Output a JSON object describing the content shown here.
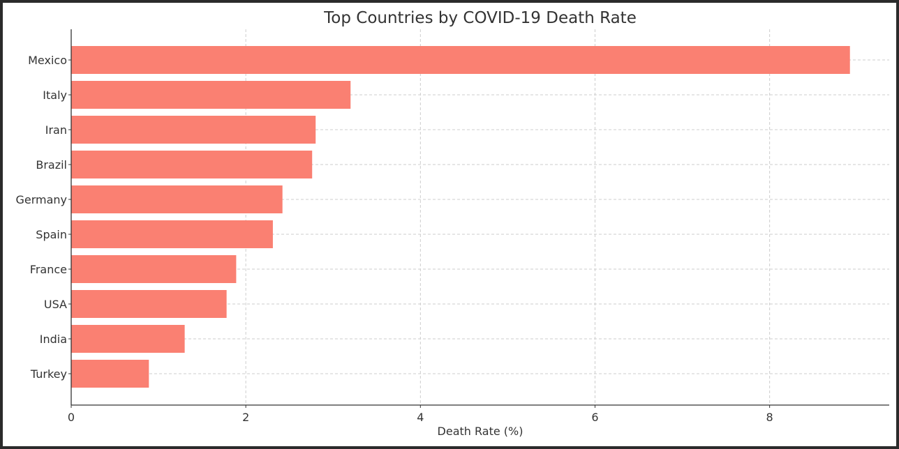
{
  "chart_data": {
    "type": "bar",
    "orientation": "horizontal",
    "title": "Top Countries by COVID-19 Death Rate",
    "xlabel": "Death Rate (%)",
    "ylabel": "",
    "categories": [
      "Mexico",
      "Italy",
      "Iran",
      "Brazil",
      "Germany",
      "Spain",
      "France",
      "USA",
      "India",
      "Turkey"
    ],
    "values": [
      8.92,
      3.2,
      2.8,
      2.76,
      2.42,
      2.31,
      1.89,
      1.78,
      1.3,
      0.89
    ],
    "xlim": [
      0,
      9.37
    ],
    "xticks": [
      0,
      2,
      4,
      6,
      8
    ],
    "xtick_labels": [
      "0",
      "2",
      "4",
      "6",
      "8"
    ],
    "grid": true,
    "bar_color": "#fa8072"
  }
}
